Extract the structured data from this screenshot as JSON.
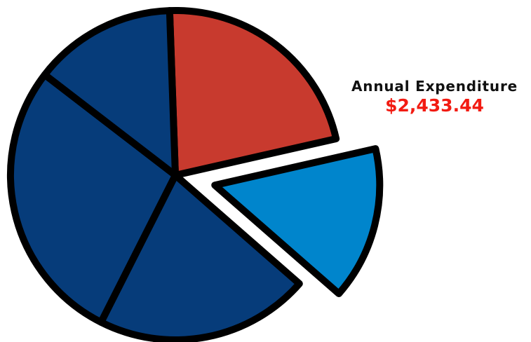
{
  "chart_data": {
    "type": "pie",
    "title": "",
    "slices": [
      {
        "value": 22,
        "color": "#c83a2e",
        "exploded": false
      },
      {
        "value": 15,
        "color": "#0085cc",
        "exploded": true
      },
      {
        "value": 21,
        "color": "#063c7a",
        "exploded": false
      },
      {
        "value": 28,
        "color": "#063c7a",
        "exploded": false
      },
      {
        "value": 14,
        "color": "#063c7a",
        "exploded": false
      }
    ],
    "outline_color": "#000000",
    "start_angle_deg": -2,
    "legend": "none"
  },
  "callout": {
    "label": "Annual Expenditure",
    "value": "$2,433.44",
    "label_color": "#111111",
    "value_color": "#f21b12"
  }
}
